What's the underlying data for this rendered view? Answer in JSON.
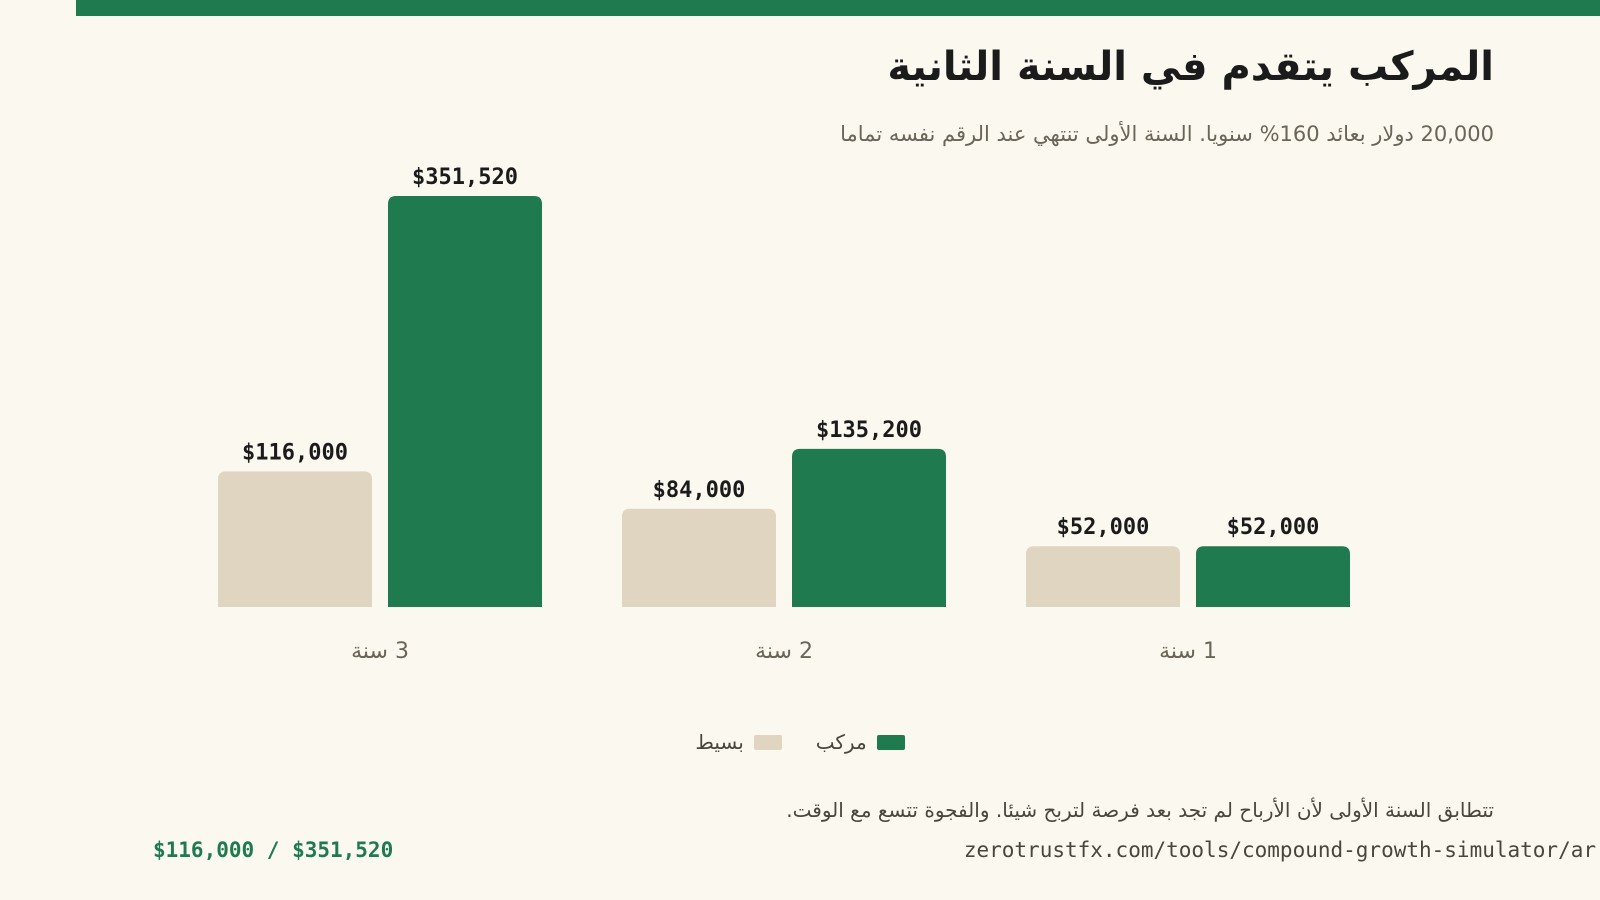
{
  "header": {
    "title": "المركب يتقدم في السنة الثانية",
    "subtitle": "20,000 دولار بعائد 160% سنويا. السنة الأولى تنتهي عند الرقم نفسه تماما"
  },
  "colors": {
    "accent": "#1f7a50",
    "simple": "#dfd5c1",
    "compound": "#1f7a50",
    "background": "#fbf8f0"
  },
  "chart_data": {
    "type": "bar",
    "categories": [
      "1 سنة",
      "2 سنة",
      "3 سنة"
    ],
    "category_order": "right-to-left",
    "series": [
      {
        "name": "بسيط",
        "values": [
          52000,
          84000,
          116000
        ],
        "labels": [
          "$52,000",
          "$84,000",
          "$116,000"
        ]
      },
      {
        "name": "مركب",
        "values": [
          52000,
          135200,
          351520
        ],
        "labels": [
          "$52,000",
          "$135,200",
          "$351,520"
        ]
      }
    ],
    "title": "المركب يتقدم في السنة الثانية",
    "subtitle": "20,000 دولار بعائد 160% سنويا. السنة الأولى تنتهي عند الرقم نفسه تماما",
    "xlabel": "",
    "ylabel": "",
    "ylim": [
      0,
      351520
    ],
    "grid": false,
    "legend_position": "bottom-center"
  },
  "legend": {
    "items": [
      {
        "label": "مركب"
      },
      {
        "label": "بسيط"
      }
    ]
  },
  "footer": {
    "note": "تتطابق السنة الأولى لأن الأرباح لم تجد بعد فرصة لتربح شيئا. والفجوة تتسع مع الوقت.",
    "ratio": "$116,000 / $351,520",
    "source": "zerotrustfx.com/tools/compound-growth-simulator/ar"
  }
}
